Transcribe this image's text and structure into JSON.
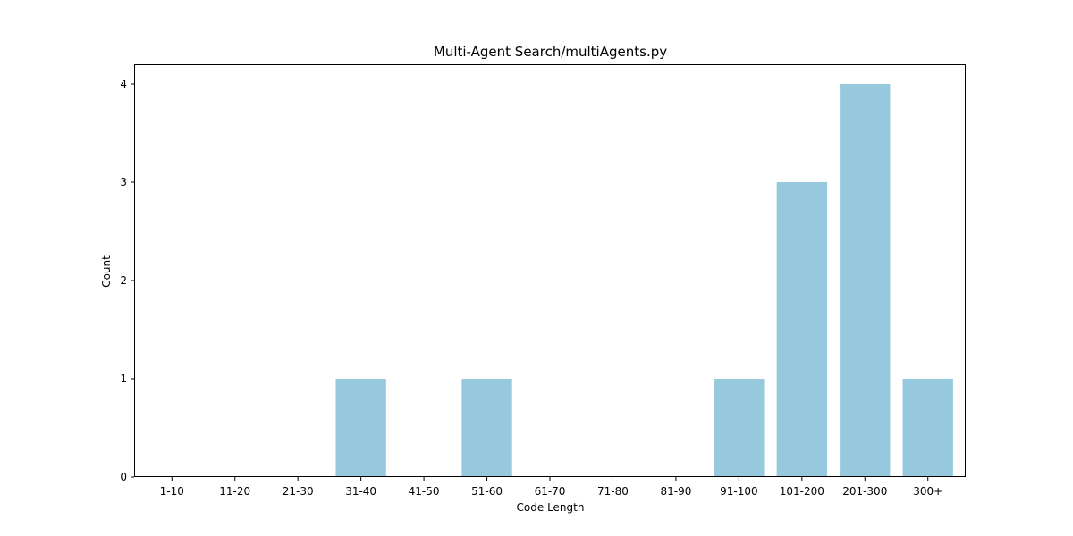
{
  "chart_data": {
    "type": "bar",
    "title": "Multi-Agent Search/multiAgents.py",
    "xlabel": "Code Length",
    "ylabel": "Count",
    "categories": [
      "1-10",
      "11-20",
      "21-30",
      "31-40",
      "41-50",
      "51-60",
      "61-70",
      "71-80",
      "81-90",
      "91-100",
      "101-200",
      "201-300",
      "300+"
    ],
    "values": [
      0,
      0,
      0,
      1,
      0,
      1,
      0,
      0,
      0,
      1,
      3,
      4,
      1
    ],
    "ylim": [
      0,
      4.2
    ],
    "yticks": [
      0,
      1,
      2,
      3,
      4
    ],
    "bar_color": "#96c9de",
    "grid": false,
    "legend": "none"
  }
}
